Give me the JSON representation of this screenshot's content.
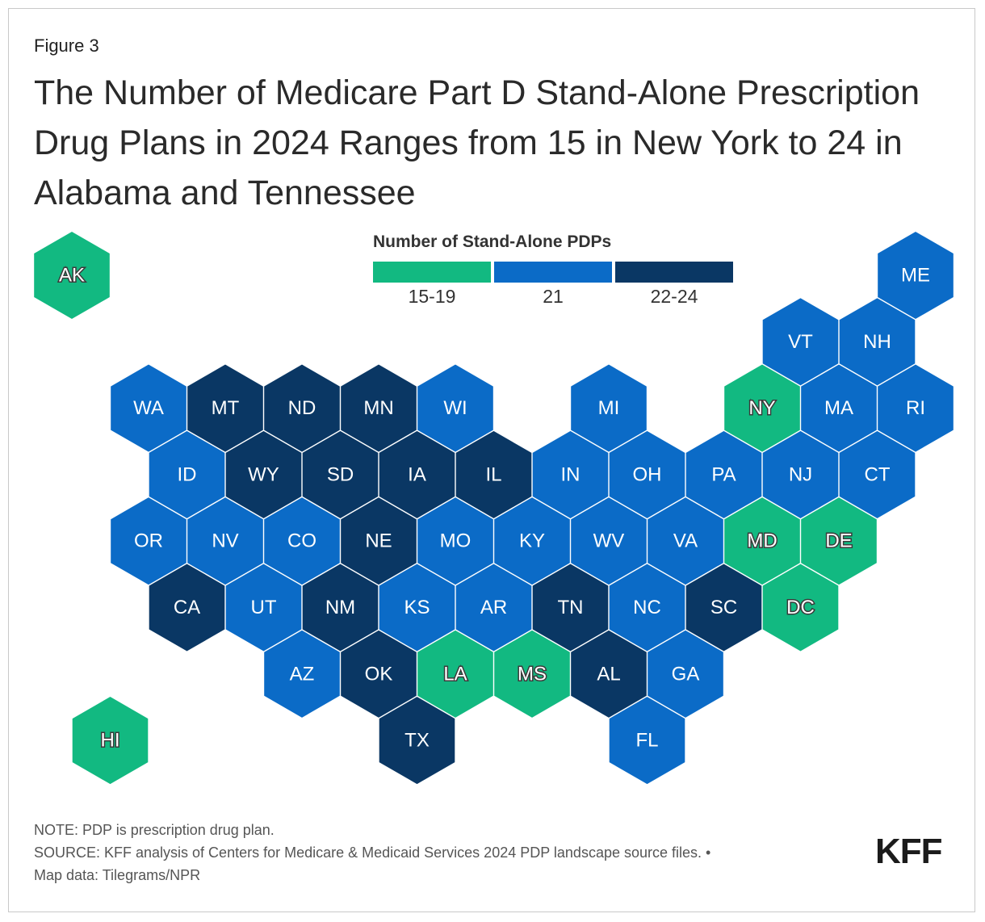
{
  "figure_label": "Figure 3",
  "title": "The Number of Medicare Part D Stand-Alone Prescription Drug Plans in 2024 Ranges from 15 in New York to 24 in Alabama and Tennessee",
  "legend": {
    "title": "Number of Stand-Alone PDPs",
    "items": [
      {
        "label": "15-19",
        "color": "#12b981"
      },
      {
        "label": "21",
        "color": "#0b6bc7"
      },
      {
        "label": "22-24",
        "color": "#0a3764"
      }
    ]
  },
  "colors": {
    "low": "#12b981",
    "mid": "#0b6bc7",
    "high": "#0a3764"
  },
  "states": [
    {
      "abbr": "AK",
      "row": 0,
      "col": 0,
      "cat": "low"
    },
    {
      "abbr": "ME",
      "row": 0,
      "col": 11,
      "cat": "mid"
    },
    {
      "abbr": "VT",
      "row": 1,
      "col": 9.5,
      "cat": "mid"
    },
    {
      "abbr": "NH",
      "row": 1,
      "col": 10.5,
      "cat": "mid"
    },
    {
      "abbr": "WA",
      "row": 2,
      "col": 1,
      "cat": "mid"
    },
    {
      "abbr": "MT",
      "row": 2,
      "col": 2,
      "cat": "high"
    },
    {
      "abbr": "ND",
      "row": 2,
      "col": 3,
      "cat": "high"
    },
    {
      "abbr": "MN",
      "row": 2,
      "col": 4,
      "cat": "high"
    },
    {
      "abbr": "WI",
      "row": 2,
      "col": 5,
      "cat": "mid"
    },
    {
      "abbr": "MI",
      "row": 2,
      "col": 7,
      "cat": "mid"
    },
    {
      "abbr": "NY",
      "row": 2,
      "col": 9,
      "cat": "low"
    },
    {
      "abbr": "MA",
      "row": 2,
      "col": 10,
      "cat": "mid"
    },
    {
      "abbr": "RI",
      "row": 2,
      "col": 11,
      "cat": "mid"
    },
    {
      "abbr": "ID",
      "row": 3,
      "col": 1.5,
      "cat": "mid"
    },
    {
      "abbr": "WY",
      "row": 3,
      "col": 2.5,
      "cat": "high"
    },
    {
      "abbr": "SD",
      "row": 3,
      "col": 3.5,
      "cat": "high"
    },
    {
      "abbr": "IA",
      "row": 3,
      "col": 4.5,
      "cat": "high"
    },
    {
      "abbr": "IL",
      "row": 3,
      "col": 5.5,
      "cat": "high"
    },
    {
      "abbr": "IN",
      "row": 3,
      "col": 6.5,
      "cat": "mid"
    },
    {
      "abbr": "OH",
      "row": 3,
      "col": 7.5,
      "cat": "mid"
    },
    {
      "abbr": "PA",
      "row": 3,
      "col": 8.5,
      "cat": "mid"
    },
    {
      "abbr": "NJ",
      "row": 3,
      "col": 9.5,
      "cat": "mid"
    },
    {
      "abbr": "CT",
      "row": 3,
      "col": 10.5,
      "cat": "mid"
    },
    {
      "abbr": "OR",
      "row": 4,
      "col": 1,
      "cat": "mid"
    },
    {
      "abbr": "NV",
      "row": 4,
      "col": 2,
      "cat": "mid"
    },
    {
      "abbr": "CO",
      "row": 4,
      "col": 3,
      "cat": "mid"
    },
    {
      "abbr": "NE",
      "row": 4,
      "col": 4,
      "cat": "high"
    },
    {
      "abbr": "MO",
      "row": 4,
      "col": 5,
      "cat": "mid"
    },
    {
      "abbr": "KY",
      "row": 4,
      "col": 6,
      "cat": "mid"
    },
    {
      "abbr": "WV",
      "row": 4,
      "col": 7,
      "cat": "mid"
    },
    {
      "abbr": "VA",
      "row": 4,
      "col": 8,
      "cat": "mid"
    },
    {
      "abbr": "MD",
      "row": 4,
      "col": 9,
      "cat": "low"
    },
    {
      "abbr": "DE",
      "row": 4,
      "col": 10,
      "cat": "low"
    },
    {
      "abbr": "CA",
      "row": 5,
      "col": 1.5,
      "cat": "high"
    },
    {
      "abbr": "UT",
      "row": 5,
      "col": 2.5,
      "cat": "mid"
    },
    {
      "abbr": "NM",
      "row": 5,
      "col": 3.5,
      "cat": "high"
    },
    {
      "abbr": "KS",
      "row": 5,
      "col": 4.5,
      "cat": "mid"
    },
    {
      "abbr": "AR",
      "row": 5,
      "col": 5.5,
      "cat": "mid"
    },
    {
      "abbr": "TN",
      "row": 5,
      "col": 6.5,
      "cat": "high"
    },
    {
      "abbr": "NC",
      "row": 5,
      "col": 7.5,
      "cat": "mid"
    },
    {
      "abbr": "SC",
      "row": 5,
      "col": 8.5,
      "cat": "high"
    },
    {
      "abbr": "DC",
      "row": 5,
      "col": 9.5,
      "cat": "low"
    },
    {
      "abbr": "AZ",
      "row": 6,
      "col": 3,
      "cat": "mid"
    },
    {
      "abbr": "OK",
      "row": 6,
      "col": 4,
      "cat": "high"
    },
    {
      "abbr": "LA",
      "row": 6,
      "col": 5,
      "cat": "low"
    },
    {
      "abbr": "MS",
      "row": 6,
      "col": 6,
      "cat": "low"
    },
    {
      "abbr": "AL",
      "row": 6,
      "col": 7,
      "cat": "high"
    },
    {
      "abbr": "GA",
      "row": 6,
      "col": 8,
      "cat": "mid"
    },
    {
      "abbr": "HI",
      "row": 7,
      "col": 0.5,
      "cat": "low"
    },
    {
      "abbr": "TX",
      "row": 7,
      "col": 4.5,
      "cat": "high"
    },
    {
      "abbr": "FL",
      "row": 7,
      "col": 7.5,
      "cat": "mid"
    }
  ],
  "note": "NOTE: PDP is prescription drug plan.",
  "source": "SOURCE: KFF analysis of Centers for Medicare & Medicaid Services 2024 PDP landscape source files. •",
  "map_data": "Map data: Tilegrams/NPR",
  "logo": "KFF"
}
